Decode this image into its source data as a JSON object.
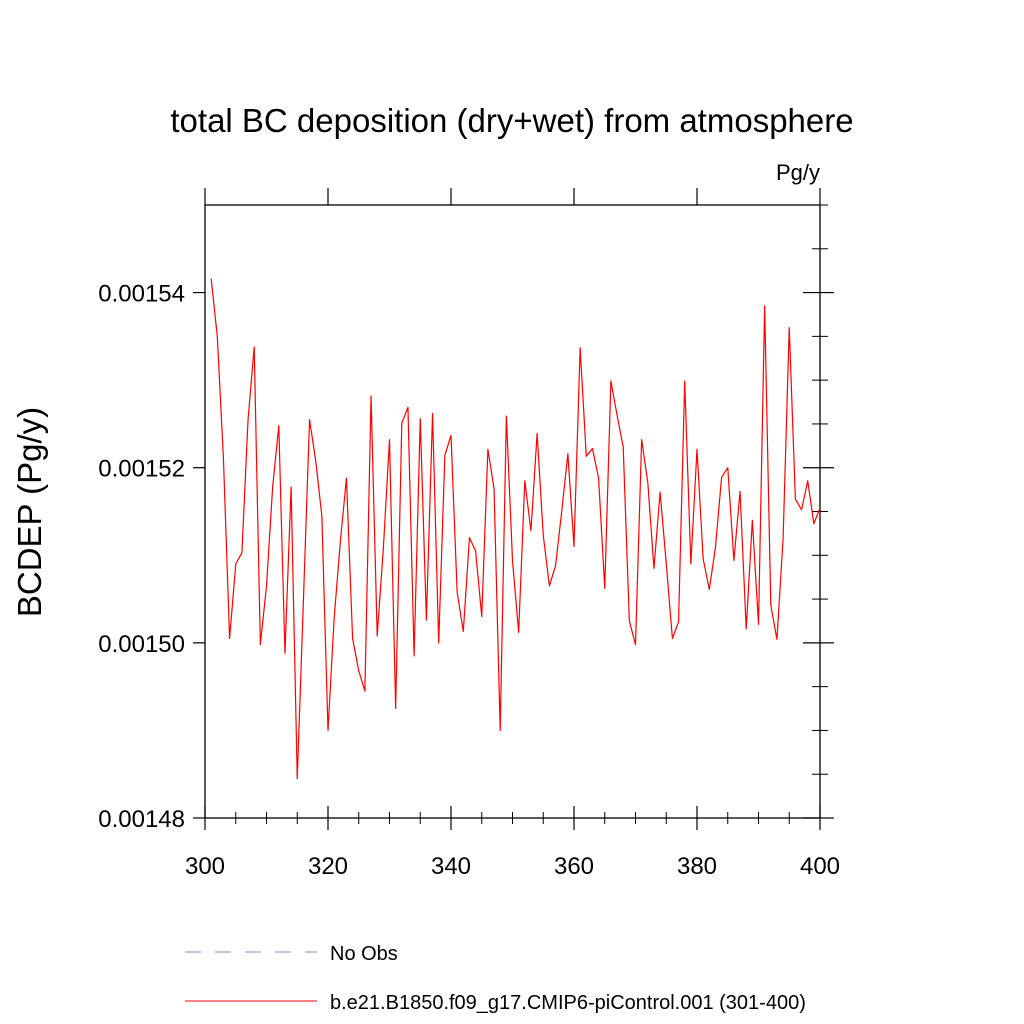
{
  "chart_data": {
    "type": "line",
    "title": "total BC deposition (dry+wet) from atmosphere",
    "units": "Pg/y",
    "ylabel": "BCDEP  (Pg/y)",
    "xlabel": "",
    "xlim": [
      300,
      400
    ],
    "ylim": [
      0.00148,
      0.00155
    ],
    "x_ticks": [
      300,
      320,
      340,
      360,
      380,
      400
    ],
    "x_tick_labels": [
      "300",
      "320",
      "340",
      "360",
      "380",
      "400"
    ],
    "x_minor_step": 5,
    "y_ticks": [
      0.00148,
      0.0015,
      0.00152,
      0.00154
    ],
    "y_tick_labels": [
      "0.00148",
      "0.00150",
      "0.00152",
      "0.00154"
    ],
    "y_minor_step": 5e-06,
    "grid": false,
    "legend_position": "bottom",
    "series": [
      {
        "name": "b.e21.B1850.f09_g17.CMIP6-piControl.001 (301-400)",
        "color": "#ff0000",
        "style": "solid",
        "x": [
          301,
          302,
          303,
          304,
          305,
          306,
          307,
          308,
          309,
          310,
          311,
          312,
          313,
          314,
          315,
          316,
          317,
          318,
          319,
          320,
          321,
          322,
          323,
          324,
          325,
          326,
          327,
          328,
          329,
          330,
          331,
          332,
          333,
          334,
          335,
          336,
          337,
          338,
          339,
          340,
          341,
          342,
          343,
          344,
          345,
          346,
          347,
          348,
          349,
          350,
          351,
          352,
          353,
          354,
          355,
          356,
          357,
          358,
          359,
          360,
          361,
          362,
          363,
          364,
          365,
          366,
          367,
          368,
          369,
          370,
          371,
          372,
          373,
          374,
          375,
          376,
          377,
          378,
          379,
          380,
          381,
          382,
          383,
          384,
          385,
          386,
          387,
          388,
          389,
          390,
          391,
          392,
          393,
          394,
          395,
          396,
          397,
          398,
          399,
          400
        ],
        "values": [
          0.0015416,
          0.001535,
          0.001521,
          0.0015005,
          0.001509,
          0.0015103,
          0.0015255,
          0.0015338,
          0.0014998,
          0.0015065,
          0.0015178,
          0.0015248,
          0.0014988,
          0.0015178,
          0.0014845,
          0.0015048,
          0.0015255,
          0.0015208,
          0.0015145,
          0.00149,
          0.0015028,
          0.0015115,
          0.0015188,
          0.0015005,
          0.0014968,
          0.0014945,
          0.0015282,
          0.0015008,
          0.0015108,
          0.0015232,
          0.0014925,
          0.0015251,
          0.0015269,
          0.0014985,
          0.0015256,
          0.0015026,
          0.0015262,
          0.0015,
          0.0015214,
          0.0015237,
          0.0015058,
          0.0015013,
          0.001512,
          0.0015105,
          0.001503,
          0.0015221,
          0.0015176,
          0.00149,
          0.0015259,
          0.0015094,
          0.0015012,
          0.0015185,
          0.0015128,
          0.0015239,
          0.0015123,
          0.0015065,
          0.0015088,
          0.001515,
          0.0015216,
          0.001511,
          0.0015337,
          0.0015213,
          0.0015222,
          0.0015188,
          0.0015062,
          0.0015299,
          0.001526,
          0.0015224,
          0.0015025,
          0.0014998,
          0.0015232,
          0.0015183,
          0.0015085,
          0.0015172,
          0.0015091,
          0.0015005,
          0.0015024,
          0.0015299,
          0.001509,
          0.0015221,
          0.0015096,
          0.0015061,
          0.0015109,
          0.0015189,
          0.00152,
          0.0015094,
          0.0015173,
          0.0015016,
          0.001514,
          0.0015021,
          0.0015385,
          0.0015043,
          0.0015004,
          0.0015119,
          0.001536,
          0.0015164,
          0.0015152,
          0.0015185,
          0.0015136,
          0.0015154
        ]
      },
      {
        "name": "No Obs",
        "color": "#8a88cc",
        "style": "dashed",
        "x": [],
        "values": []
      }
    ]
  }
}
